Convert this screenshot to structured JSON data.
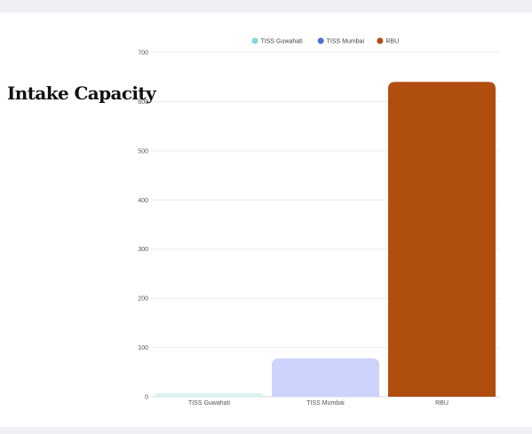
{
  "page": {
    "title": "Intake Capacity"
  },
  "chart_data": {
    "type": "bar",
    "title": "",
    "xlabel": "",
    "ylabel": "",
    "categories": [
      "TISS Guwahati",
      "TISS Mumbai",
      "RBU"
    ],
    "values": [
      7,
      78,
      640
    ],
    "ylim": [
      0,
      700
    ],
    "yticks": [
      0,
      100,
      200,
      300,
      400,
      500,
      600,
      700
    ],
    "grid": true,
    "legend_position": "top-center",
    "legend": [
      {
        "label": "TISS Guwahati",
        "color": "#7fd8d8"
      },
      {
        "label": "TISS Mumbai",
        "color": "#4d6fd0"
      },
      {
        "label": "RBU",
        "color": "#b04e10"
      }
    ],
    "bar_colors": [
      "#d9f2f2",
      "#cdd4fb",
      "#b04e10"
    ]
  }
}
